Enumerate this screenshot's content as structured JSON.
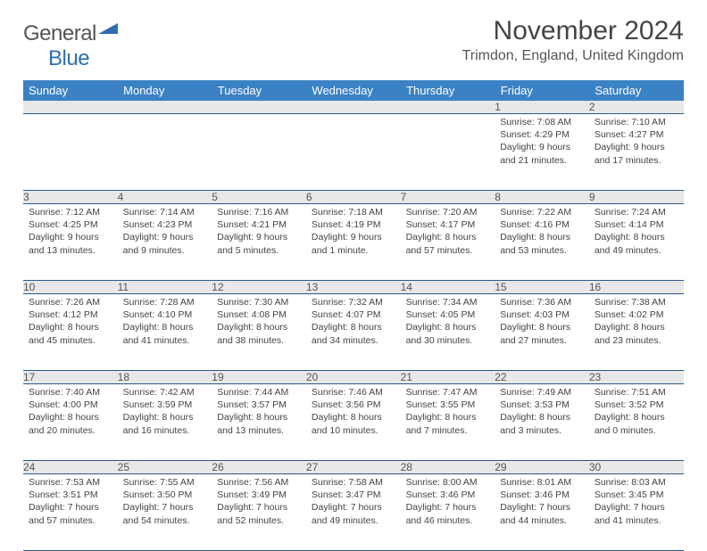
{
  "brand": {
    "word1": "General",
    "word2": "Blue"
  },
  "title": "November 2024",
  "location": "Trimdon, England, United Kingdom",
  "colors": {
    "header_bg": "#3b82c4",
    "header_text": "#ffffff",
    "daynum_bg": "#e8e8e8",
    "rule": "#2a5a8a",
    "brand_blue": "#2f6fad",
    "body_text": "#444444"
  },
  "columns": [
    "Sunday",
    "Monday",
    "Tuesday",
    "Wednesday",
    "Thursday",
    "Friday",
    "Saturday"
  ],
  "weeks": [
    [
      {
        "n": "",
        "sr": "",
        "ss": "",
        "dl": ""
      },
      {
        "n": "",
        "sr": "",
        "ss": "",
        "dl": ""
      },
      {
        "n": "",
        "sr": "",
        "ss": "",
        "dl": ""
      },
      {
        "n": "",
        "sr": "",
        "ss": "",
        "dl": ""
      },
      {
        "n": "",
        "sr": "",
        "ss": "",
        "dl": ""
      },
      {
        "n": "1",
        "sr": "Sunrise: 7:08 AM",
        "ss": "Sunset: 4:29 PM",
        "dl": "Daylight: 9 hours and 21 minutes."
      },
      {
        "n": "2",
        "sr": "Sunrise: 7:10 AM",
        "ss": "Sunset: 4:27 PM",
        "dl": "Daylight: 9 hours and 17 minutes."
      }
    ],
    [
      {
        "n": "3",
        "sr": "Sunrise: 7:12 AM",
        "ss": "Sunset: 4:25 PM",
        "dl": "Daylight: 9 hours and 13 minutes."
      },
      {
        "n": "4",
        "sr": "Sunrise: 7:14 AM",
        "ss": "Sunset: 4:23 PM",
        "dl": "Daylight: 9 hours and 9 minutes."
      },
      {
        "n": "5",
        "sr": "Sunrise: 7:16 AM",
        "ss": "Sunset: 4:21 PM",
        "dl": "Daylight: 9 hours and 5 minutes."
      },
      {
        "n": "6",
        "sr": "Sunrise: 7:18 AM",
        "ss": "Sunset: 4:19 PM",
        "dl": "Daylight: 9 hours and 1 minute."
      },
      {
        "n": "7",
        "sr": "Sunrise: 7:20 AM",
        "ss": "Sunset: 4:17 PM",
        "dl": "Daylight: 8 hours and 57 minutes."
      },
      {
        "n": "8",
        "sr": "Sunrise: 7:22 AM",
        "ss": "Sunset: 4:16 PM",
        "dl": "Daylight: 8 hours and 53 minutes."
      },
      {
        "n": "9",
        "sr": "Sunrise: 7:24 AM",
        "ss": "Sunset: 4:14 PM",
        "dl": "Daylight: 8 hours and 49 minutes."
      }
    ],
    [
      {
        "n": "10",
        "sr": "Sunrise: 7:26 AM",
        "ss": "Sunset: 4:12 PM",
        "dl": "Daylight: 8 hours and 45 minutes."
      },
      {
        "n": "11",
        "sr": "Sunrise: 7:28 AM",
        "ss": "Sunset: 4:10 PM",
        "dl": "Daylight: 8 hours and 41 minutes."
      },
      {
        "n": "12",
        "sr": "Sunrise: 7:30 AM",
        "ss": "Sunset: 4:08 PM",
        "dl": "Daylight: 8 hours and 38 minutes."
      },
      {
        "n": "13",
        "sr": "Sunrise: 7:32 AM",
        "ss": "Sunset: 4:07 PM",
        "dl": "Daylight: 8 hours and 34 minutes."
      },
      {
        "n": "14",
        "sr": "Sunrise: 7:34 AM",
        "ss": "Sunset: 4:05 PM",
        "dl": "Daylight: 8 hours and 30 minutes."
      },
      {
        "n": "15",
        "sr": "Sunrise: 7:36 AM",
        "ss": "Sunset: 4:03 PM",
        "dl": "Daylight: 8 hours and 27 minutes."
      },
      {
        "n": "16",
        "sr": "Sunrise: 7:38 AM",
        "ss": "Sunset: 4:02 PM",
        "dl": "Daylight: 8 hours and 23 minutes."
      }
    ],
    [
      {
        "n": "17",
        "sr": "Sunrise: 7:40 AM",
        "ss": "Sunset: 4:00 PM",
        "dl": "Daylight: 8 hours and 20 minutes."
      },
      {
        "n": "18",
        "sr": "Sunrise: 7:42 AM",
        "ss": "Sunset: 3:59 PM",
        "dl": "Daylight: 8 hours and 16 minutes."
      },
      {
        "n": "19",
        "sr": "Sunrise: 7:44 AM",
        "ss": "Sunset: 3:57 PM",
        "dl": "Daylight: 8 hours and 13 minutes."
      },
      {
        "n": "20",
        "sr": "Sunrise: 7:46 AM",
        "ss": "Sunset: 3:56 PM",
        "dl": "Daylight: 8 hours and 10 minutes."
      },
      {
        "n": "21",
        "sr": "Sunrise: 7:47 AM",
        "ss": "Sunset: 3:55 PM",
        "dl": "Daylight: 8 hours and 7 minutes."
      },
      {
        "n": "22",
        "sr": "Sunrise: 7:49 AM",
        "ss": "Sunset: 3:53 PM",
        "dl": "Daylight: 8 hours and 3 minutes."
      },
      {
        "n": "23",
        "sr": "Sunrise: 7:51 AM",
        "ss": "Sunset: 3:52 PM",
        "dl": "Daylight: 8 hours and 0 minutes."
      }
    ],
    [
      {
        "n": "24",
        "sr": "Sunrise: 7:53 AM",
        "ss": "Sunset: 3:51 PM",
        "dl": "Daylight: 7 hours and 57 minutes."
      },
      {
        "n": "25",
        "sr": "Sunrise: 7:55 AM",
        "ss": "Sunset: 3:50 PM",
        "dl": "Daylight: 7 hours and 54 minutes."
      },
      {
        "n": "26",
        "sr": "Sunrise: 7:56 AM",
        "ss": "Sunset: 3:49 PM",
        "dl": "Daylight: 7 hours and 52 minutes."
      },
      {
        "n": "27",
        "sr": "Sunrise: 7:58 AM",
        "ss": "Sunset: 3:47 PM",
        "dl": "Daylight: 7 hours and 49 minutes."
      },
      {
        "n": "28",
        "sr": "Sunrise: 8:00 AM",
        "ss": "Sunset: 3:46 PM",
        "dl": "Daylight: 7 hours and 46 minutes."
      },
      {
        "n": "29",
        "sr": "Sunrise: 8:01 AM",
        "ss": "Sunset: 3:46 PM",
        "dl": "Daylight: 7 hours and 44 minutes."
      },
      {
        "n": "30",
        "sr": "Sunrise: 8:03 AM",
        "ss": "Sunset: 3:45 PM",
        "dl": "Daylight: 7 hours and 41 minutes."
      }
    ]
  ]
}
